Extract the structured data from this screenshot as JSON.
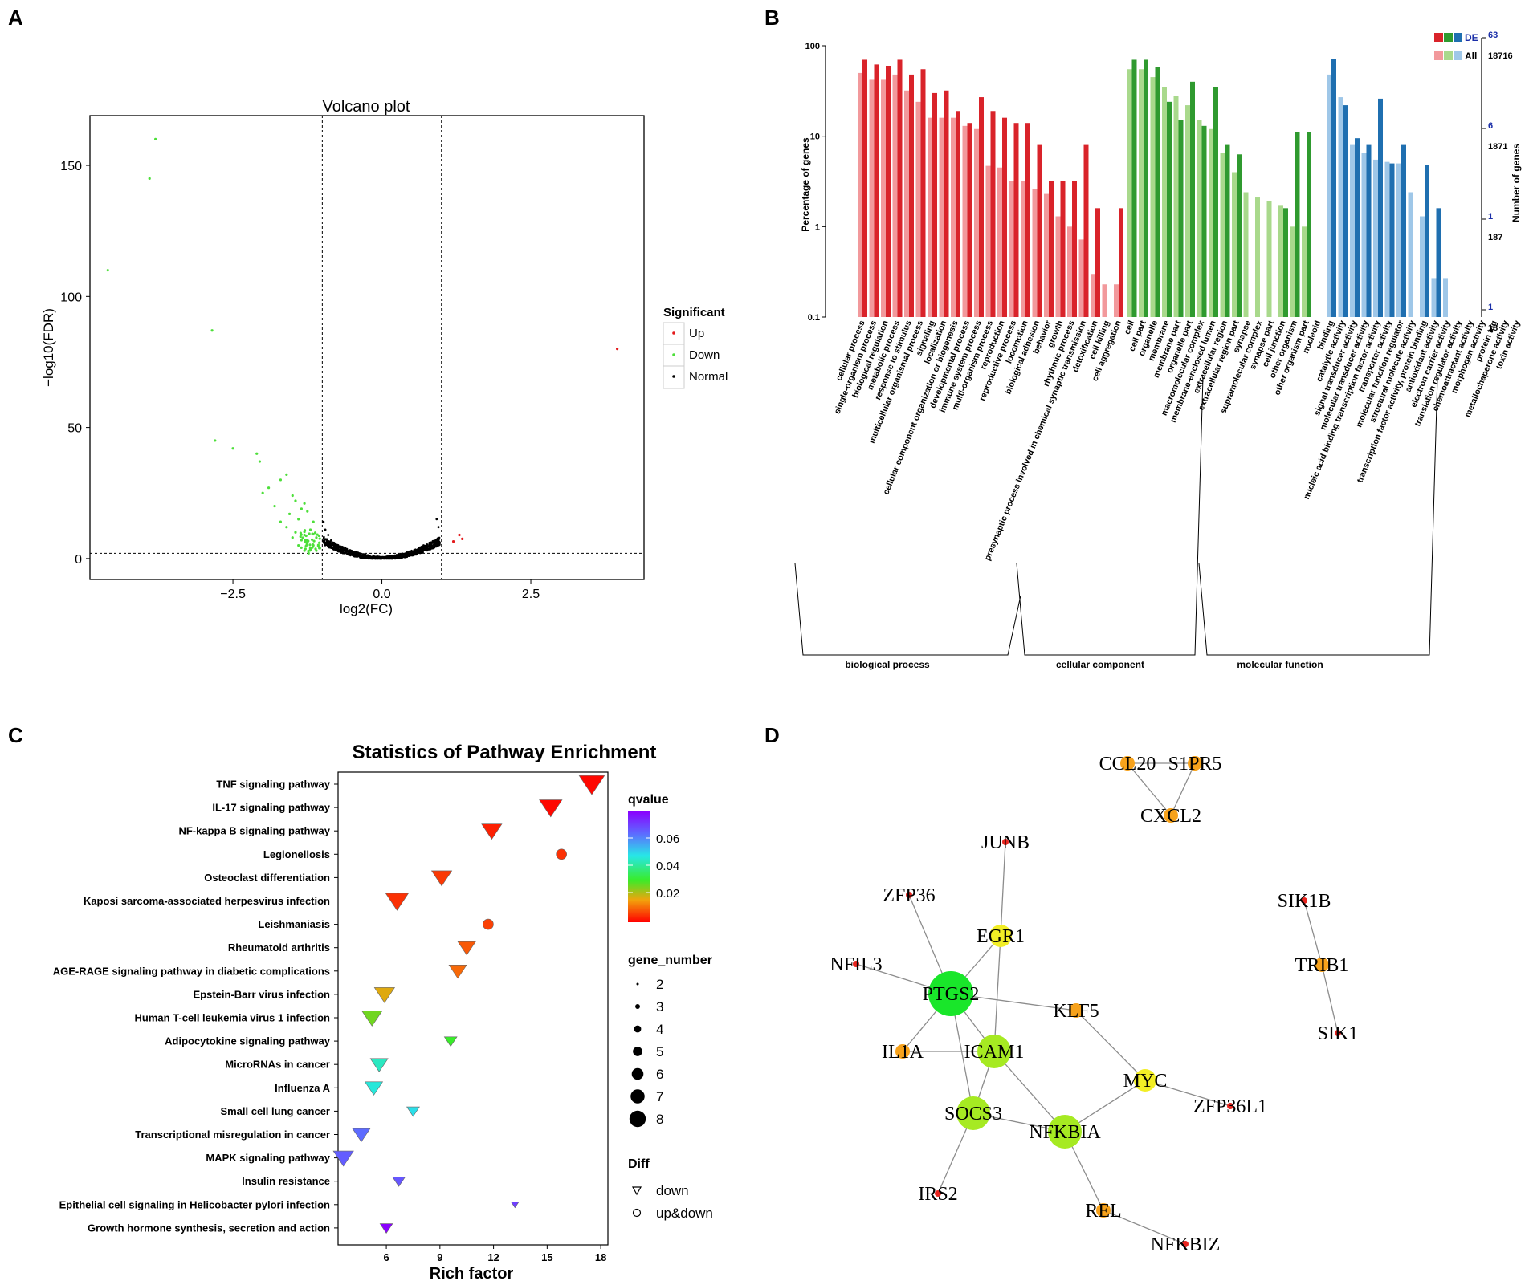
{
  "panels": {
    "a": "A",
    "b": "B",
    "c": "C",
    "d": "D"
  },
  "volcano": {
    "title": "Volcano plot",
    "xlabel": "log2(FC)",
    "ylabel": "−log10(FDR)",
    "xlim": [
      -4.9,
      4.4
    ],
    "ylim": [
      -8,
      169
    ],
    "xticks": [
      -2.5,
      0.0,
      2.5
    ],
    "xtick_labels": [
      "−2.5",
      "0.0",
      "2.5"
    ],
    "yticks": [
      0,
      50,
      100,
      150
    ],
    "ytick_labels": [
      "0",
      "50",
      "100",
      "150"
    ],
    "fc_threshold": [
      -1,
      1
    ],
    "fdr_threshold": 2,
    "legend": {
      "title": "Significant",
      "items": [
        "Up",
        "Down",
        "Normal"
      ]
    },
    "colors": {
      "Up": "#e31a1c",
      "Down": "#4ddf3a",
      "Normal": "#000000"
    },
    "up_points": [
      [
        3.95,
        80
      ],
      [
        1.3,
        9
      ],
      [
        1.2,
        6.5
      ],
      [
        1.35,
        7.5
      ]
    ],
    "down_points": [
      [
        -3.8,
        160
      ],
      [
        -3.9,
        145
      ],
      [
        -4.6,
        110
      ],
      [
        -2.85,
        87
      ],
      [
        -2.8,
        45
      ],
      [
        -2.5,
        42
      ],
      [
        -2.1,
        40
      ],
      [
        -2.05,
        37
      ],
      [
        -1.6,
        32
      ],
      [
        -1.7,
        30
      ],
      [
        -1.9,
        27
      ],
      [
        -2.0,
        25
      ],
      [
        -1.5,
        24
      ],
      [
        -1.45,
        22
      ],
      [
        -1.3,
        21
      ],
      [
        -1.8,
        20
      ],
      [
        -1.35,
        19
      ],
      [
        -1.25,
        18
      ],
      [
        -1.55,
        17
      ],
      [
        -1.4,
        15
      ],
      [
        -1.7,
        14
      ],
      [
        -1.15,
        14
      ],
      [
        -1.6,
        12
      ],
      [
        -1.2,
        11
      ],
      [
        -1.45,
        10
      ],
      [
        -1.3,
        9
      ],
      [
        -1.1,
        8
      ],
      [
        -1.5,
        8
      ],
      [
        -1.35,
        7
      ],
      [
        -1.05,
        6
      ],
      [
        -1.25,
        6
      ],
      [
        -1.15,
        5
      ],
      [
        -1.4,
        5
      ],
      [
        -1.05,
        4
      ],
      [
        -1.2,
        4
      ],
      [
        -1.1,
        3
      ],
      [
        -1.3,
        3
      ]
    ],
    "normal_pos_edge": [
      [
        0.92,
        15
      ],
      [
        0.95,
        12
      ],
      [
        0.8,
        6
      ],
      [
        0.7,
        5
      ],
      [
        0.75,
        4
      ]
    ],
    "normal_neg_edge": [
      [
        -0.98,
        14
      ],
      [
        -0.95,
        11
      ],
      [
        -0.9,
        9
      ],
      [
        -0.85,
        7
      ],
      [
        -0.93,
        6
      ]
    ]
  },
  "go": {
    "ylabel_left": "Percentage of genes",
    "ylabel_right": "Number of genes",
    "left_ticks": [
      "100",
      "10",
      "1",
      "0.1"
    ],
    "right_ticks_de": [
      "63",
      "6",
      "1",
      "1"
    ],
    "right_ticks_all": [
      "18716",
      "1871",
      "187",
      "18"
    ],
    "legend": {
      "de": "DE",
      "all": "All"
    },
    "groups": [
      {
        "name": "biological process",
        "colors": [
          "#d9232a",
          "#f2999c"
        ],
        "terms": [
          {
            "label": "cellular process",
            "de": 70,
            "all": 50
          },
          {
            "label": "single-organism process",
            "de": 62,
            "all": 42
          },
          {
            "label": "biological regulation",
            "de": 60,
            "all": 42
          },
          {
            "label": "metabolic process",
            "de": 70,
            "all": 48
          },
          {
            "label": "response to stimulus",
            "de": 48,
            "all": 32
          },
          {
            "label": "multicellular organismal process",
            "de": 55,
            "all": 24
          },
          {
            "label": "signaling",
            "de": 30,
            "all": 16
          },
          {
            "label": "localization",
            "de": 32,
            "all": 16
          },
          {
            "label": "cellular component organization or biogenesis",
            "de": 19,
            "all": 16
          },
          {
            "label": "developmental process",
            "de": 14,
            "all": 13
          },
          {
            "label": "immune system process",
            "de": 27,
            "all": 12
          },
          {
            "label": "multi-organism process",
            "de": 19,
            "all": 4.7
          },
          {
            "label": "reproduction",
            "de": 16,
            "all": 4.5
          },
          {
            "label": "reproductive process",
            "de": 14,
            "all": 3.2
          },
          {
            "label": "locomotion",
            "de": 14,
            "all": 3.2
          },
          {
            "label": "biological adhesion",
            "de": 8,
            "all": 2.6
          },
          {
            "label": "behavior",
            "de": 3.2,
            "all": 2.3
          },
          {
            "label": "growth",
            "de": 3.2,
            "all": 1.3
          },
          {
            "label": "rhythmic process",
            "de": 3.2,
            "all": 1.0
          },
          {
            "label": "presynaptic process involved in chemical synaptic transmission",
            "de": 8,
            "all": 0.72
          },
          {
            "label": "detoxification",
            "de": 1.6,
            "all": 0.3
          },
          {
            "label": "cell killing",
            "de": null,
            "all": 0.23
          },
          {
            "label": "cell aggregation",
            "de": 1.6,
            "all": 0.23
          }
        ]
      },
      {
        "name": "cellular component",
        "colors": [
          "#2f9a2f",
          "#a9d98c"
        ],
        "terms": [
          {
            "label": "cell",
            "de": 70,
            "all": 55
          },
          {
            "label": "cell part",
            "de": 70,
            "all": 55
          },
          {
            "label": "organelle",
            "de": 58,
            "all": 45
          },
          {
            "label": "membrane",
            "de": 24,
            "all": 35
          },
          {
            "label": "membrane part",
            "de": 15,
            "all": 28
          },
          {
            "label": "organelle part",
            "de": 40,
            "all": 22
          },
          {
            "label": "macromolecular complex",
            "de": 13,
            "all": 15
          },
          {
            "label": "membrane-enclosed lumen",
            "de": 35,
            "all": 12
          },
          {
            "label": "extracellular region",
            "de": 8,
            "all": 6.5
          },
          {
            "label": "extracellular region part",
            "de": 6.3,
            "all": 4
          },
          {
            "label": "synapse",
            "de": null,
            "all": 2.4
          },
          {
            "label": "supramolecular complex",
            "de": null,
            "all": 2.1
          },
          {
            "label": "synapse part",
            "de": null,
            "all": 1.9
          },
          {
            "label": "cell junction",
            "de": 1.6,
            "all": 1.7
          },
          {
            "label": "other organism",
            "de": 11,
            "all": 1.0
          },
          {
            "label": "other organism part",
            "de": 11,
            "all": 1.0
          },
          {
            "label": "nucleoid",
            "de": null,
            "all": null
          }
        ]
      },
      {
        "name": "molecular function",
        "colors": [
          "#1f6fb0",
          "#9fc7e8"
        ],
        "terms": [
          {
            "label": "binding",
            "de": 72,
            "all": 48
          },
          {
            "label": "catalytic activity",
            "de": 22,
            "all": 27
          },
          {
            "label": "signal transducer activity",
            "de": 9.5,
            "all": 8
          },
          {
            "label": "molecular transducer activity",
            "de": 8,
            "all": 6.5
          },
          {
            "label": "nucleic acid binding transcription factor activity",
            "de": 26,
            "all": 5.5
          },
          {
            "label": "transporter activity",
            "de": 5,
            "all": 5.2
          },
          {
            "label": "molecular function regulator",
            "de": 8,
            "all": 5
          },
          {
            "label": "structural molecule activity",
            "de": null,
            "all": 2.4
          },
          {
            "label": "transcription factor activity, protein binding",
            "de": 4.8,
            "all": 1.3
          },
          {
            "label": "antioxidant activity",
            "de": 1.6,
            "all": 0.27
          },
          {
            "label": "electron carrier activity",
            "de": null,
            "all": 0.27
          },
          {
            "label": "translation regulator activity",
            "de": null,
            "all": null
          },
          {
            "label": "chemoattractant activity",
            "de": null,
            "all": null
          },
          {
            "label": "morphogen activity",
            "de": null,
            "all": null
          },
          {
            "label": "protein tag",
            "de": null,
            "all": null
          },
          {
            "label": "metallochaperone activity",
            "de": null,
            "all": null
          },
          {
            "label": "toxin activity",
            "de": null,
            "all": null
          }
        ]
      }
    ]
  },
  "pathway": {
    "title": "Statistics of Pathway Enrichment",
    "xlabel": "Rich factor",
    "xlim": [
      3.3,
      18.4
    ],
    "xticks": [
      6,
      9,
      12,
      15,
      18
    ],
    "xtick_labels": [
      "6",
      "9",
      "12",
      "15",
      "18"
    ],
    "qvalue_title": "qvalue",
    "qvalue_ticks": [
      "0.06",
      "0.04",
      "0.02"
    ],
    "gene_number_title": "gene_number",
    "gene_number_values": [
      "2",
      "3",
      "4",
      "5",
      "6",
      "7",
      "8"
    ],
    "diff_title": "Diff",
    "diff_labels": [
      "down",
      "up&down"
    ],
    "rows": [
      {
        "name": "TNF signaling pathway",
        "rich": 17.5,
        "genes": 8,
        "q": 0.001,
        "shape": "down"
      },
      {
        "name": "IL-17 signaling pathway",
        "rich": 15.2,
        "genes": 7,
        "q": 0.001,
        "shape": "down"
      },
      {
        "name": "NF-kappa B signaling pathway",
        "rich": 11.9,
        "genes": 6,
        "q": 0.004,
        "shape": "down"
      },
      {
        "name": "Legionellosis",
        "rich": 15.8,
        "genes": 4,
        "q": 0.006,
        "shape": "updown"
      },
      {
        "name": "Osteoclast differentiation",
        "rich": 9.1,
        "genes": 6,
        "q": 0.007,
        "shape": "down"
      },
      {
        "name": "Kaposi sarcoma-associated herpesvirus infection",
        "rich": 6.6,
        "genes": 7,
        "q": 0.006,
        "shape": "down"
      },
      {
        "name": "Leishmaniasis",
        "rich": 11.7,
        "genes": 4,
        "q": 0.008,
        "shape": "updown"
      },
      {
        "name": "Rheumatoid arthritis",
        "rich": 10.5,
        "genes": 5,
        "q": 0.011,
        "shape": "down"
      },
      {
        "name": "AGE-RAGE signaling pathway in diabetic complications",
        "rich": 10.0,
        "genes": 5,
        "q": 0.013,
        "shape": "down"
      },
      {
        "name": "Epstein-Barr virus infection",
        "rich": 5.9,
        "genes": 6,
        "q": 0.021,
        "shape": "down"
      },
      {
        "name": "Human T-cell leukemia virus 1 infection",
        "rich": 5.2,
        "genes": 6,
        "q": 0.027,
        "shape": "down"
      },
      {
        "name": "Adipocytokine signaling pathway",
        "rich": 9.6,
        "genes": 3,
        "q": 0.03,
        "shape": "down"
      },
      {
        "name": "MicroRNAs in cancer",
        "rich": 5.6,
        "genes": 5,
        "q": 0.042,
        "shape": "down"
      },
      {
        "name": "Influenza A",
        "rich": 5.3,
        "genes": 5,
        "q": 0.044,
        "shape": "down"
      },
      {
        "name": "Small cell lung cancer",
        "rich": 7.5,
        "genes": 3,
        "q": 0.046,
        "shape": "down"
      },
      {
        "name": "Transcriptional misregulation in cancer",
        "rich": 4.6,
        "genes": 5,
        "q": 0.06,
        "shape": "down"
      },
      {
        "name": "MAPK signaling pathway",
        "rich": 3.6,
        "genes": 6,
        "q": 0.062,
        "shape": "down"
      },
      {
        "name": "Insulin resistance",
        "rich": 6.7,
        "genes": 3,
        "q": 0.063,
        "shape": "down"
      },
      {
        "name": "Epithelial cell signaling in Helicobacter pylori infection",
        "rich": 13.2,
        "genes": 1,
        "q": 0.066,
        "shape": "down"
      },
      {
        "name": "Growth hormone synthesis, secretion and action",
        "rich": 6.0,
        "genes": 3,
        "q": 0.075,
        "shape": "down"
      }
    ]
  },
  "network": {
    "nodes": [
      {
        "id": "CCL20",
        "label": "CCL20",
        "color": "#f7a21b",
        "size": 9
      },
      {
        "id": "S1PR5",
        "label": "S1PR5",
        "color": "#f7a21b",
        "size": 9
      },
      {
        "id": "CXCL2",
        "label": "CXCL2",
        "color": "#f7a21b",
        "size": 9
      },
      {
        "id": "JUNB",
        "label": "JUNB",
        "color": "#e8251f",
        "size": 4
      },
      {
        "id": "ZFP36",
        "label": "ZFP36",
        "color": "#e8251f",
        "size": 4
      },
      {
        "id": "EGR1",
        "label": "EGR1",
        "color": "#f2ee25",
        "size": 14
      },
      {
        "id": "NFIL3",
        "label": "NFIL3",
        "color": "#e8251f",
        "size": 4
      },
      {
        "id": "PTGS2",
        "label": "PTGS2",
        "color": "#19e62a",
        "size": 28
      },
      {
        "id": "KLF5",
        "label": "KLF5",
        "color": "#f7a21b",
        "size": 9
      },
      {
        "id": "IL1A",
        "label": "IL1A",
        "color": "#f7a21b",
        "size": 9
      },
      {
        "id": "ICAM1",
        "label": "ICAM1",
        "color": "#a6ea22",
        "size": 21
      },
      {
        "id": "MYC",
        "label": "MYC",
        "color": "#f2ee25",
        "size": 14
      },
      {
        "id": "ZFP36L1",
        "label": "ZFP36L1",
        "color": "#e8251f",
        "size": 4
      },
      {
        "id": "SOCS3",
        "label": "SOCS3",
        "color": "#a6ea22",
        "size": 21
      },
      {
        "id": "NFKBIA",
        "label": "NFKBIA",
        "color": "#a6ea22",
        "size": 21
      },
      {
        "id": "IRS2",
        "label": "IRS2",
        "color": "#e8251f",
        "size": 4
      },
      {
        "id": "REL",
        "label": "REL",
        "color": "#f7a21b",
        "size": 9
      },
      {
        "id": "NFKBIZ",
        "label": "NFKBIZ",
        "color": "#e8251f",
        "size": 4
      },
      {
        "id": "SIK1B",
        "label": "SIK1B",
        "color": "#e8251f",
        "size": 4
      },
      {
        "id": "TRIB1",
        "label": "TRIB1",
        "color": "#f7a21b",
        "size": 9
      },
      {
        "id": "SIK1",
        "label": "SIK1",
        "color": "#e8251f",
        "size": 4
      }
    ],
    "edges": [
      [
        "CCL20",
        "S1PR5"
      ],
      [
        "CCL20",
        "CXCL2"
      ],
      [
        "S1PR5",
        "CXCL2"
      ],
      [
        "JUNB",
        "EGR1"
      ],
      [
        "ZFP36",
        "PTGS2"
      ],
      [
        "EGR1",
        "PTGS2"
      ],
      [
        "EGR1",
        "ICAM1"
      ],
      [
        "NFIL3",
        "PTGS2"
      ],
      [
        "PTGS2",
        "KLF5"
      ],
      [
        "PTGS2",
        "IL1A"
      ],
      [
        "PTGS2",
        "ICAM1"
      ],
      [
        "PTGS2",
        "SOCS3"
      ],
      [
        "IL1A",
        "ICAM1"
      ],
      [
        "ICAM1",
        "SOCS3"
      ],
      [
        "ICAM1",
        "NFKBIA"
      ],
      [
        "KLF5",
        "MYC"
      ],
      [
        "MYC",
        "ZFP36L1"
      ],
      [
        "MYC",
        "NFKBIA"
      ],
      [
        "SOCS3",
        "NFKBIA"
      ],
      [
        "SOCS3",
        "IRS2"
      ],
      [
        "NFKBIA",
        "REL"
      ],
      [
        "REL",
        "NFKBIZ"
      ],
      [
        "SIK1B",
        "TRIB1"
      ],
      [
        "TRIB1",
        "SIK1"
      ]
    ]
  }
}
